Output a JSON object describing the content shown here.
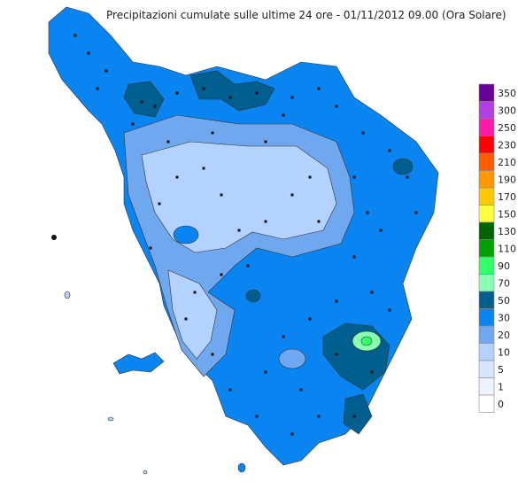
{
  "title": "Precipitazioni cumulate sulle ultime 24 ore - 01/11/2012 09.00 (Ora Solare)",
  "legend": {
    "items": [
      {
        "label": "350",
        "color": "#6a0099"
      },
      {
        "label": "300",
        "color": "#b23fe0"
      },
      {
        "label": "250",
        "color": "#ff1aa8"
      },
      {
        "label": "230",
        "color": "#ff0000"
      },
      {
        "label": "210",
        "color": "#ff5a00"
      },
      {
        "label": "190",
        "color": "#ff9900"
      },
      {
        "label": "170",
        "color": "#ffc800"
      },
      {
        "label": "150",
        "color": "#ffff40"
      },
      {
        "label": "130",
        "color": "#006400"
      },
      {
        "label": "110",
        "color": "#00a000"
      },
      {
        "label": "90",
        "color": "#33ff66"
      },
      {
        "label": "70",
        "color": "#88ffb0"
      },
      {
        "label": "50",
        "color": "#005f8f"
      },
      {
        "label": "30",
        "color": "#0a84f0"
      },
      {
        "label": "20",
        "color": "#6fa8ee"
      },
      {
        "label": "10",
        "color": "#b4d2ff"
      },
      {
        "label": "5",
        "color": "#d6e6ff"
      },
      {
        "label": "1",
        "color": "#eef4ff"
      },
      {
        "label": "0",
        "color": "#ffffff"
      }
    ]
  }
}
